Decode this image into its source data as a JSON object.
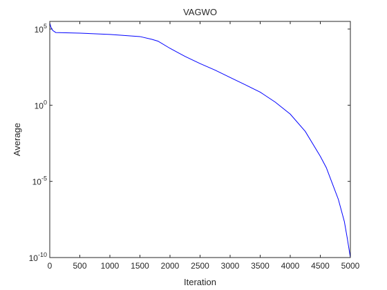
{
  "chart_data": {
    "type": "line",
    "title": "VAGWO",
    "x_label": "Iteration",
    "y_label": "Average",
    "x": [
      0,
      20,
      50,
      100,
      500,
      1000,
      1500,
      1700,
      1800,
      2000,
      2250,
      2500,
      2750,
      3000,
      3250,
      3500,
      3750,
      4000,
      4250,
      4500,
      4600,
      4700,
      4800,
      4900,
      4950,
      5000
    ],
    "values": [
      250000,
      130000,
      80000,
      59000,
      54000,
      44000,
      32000,
      21000,
      16000,
      5400,
      1600,
      540,
      200,
      66,
      22,
      7.2,
      1.6,
      0.26,
      0.019,
      0.00044,
      7.9e-05,
      7.2e-06,
      6.6e-07,
      2.3e-08,
      1.7e-09,
      1e-10
    ],
    "color": "#0000ff",
    "xlim": [
      0,
      5000
    ],
    "xticks": [
      0,
      500,
      1000,
      1500,
      2000,
      2500,
      3000,
      3500,
      4000,
      4500,
      5000
    ],
    "ylim": [
      1e-10,
      316228
    ],
    "y_scale": "log",
    "yticks": [
      {
        "value": 1e-10,
        "label": "10^-10"
      },
      {
        "value": 1e-05,
        "label": "10^-5"
      },
      {
        "value": 1,
        "label": "10^0"
      },
      {
        "value": 100000,
        "label": "10^5"
      }
    ],
    "grid": false
  }
}
